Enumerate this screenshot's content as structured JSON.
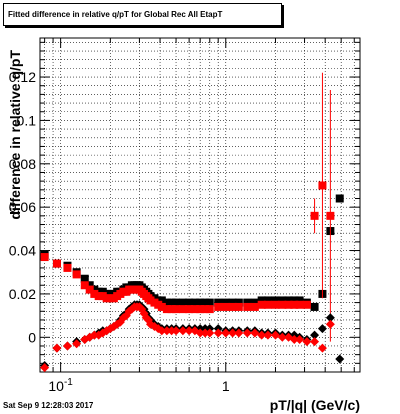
{
  "window": {
    "timestamp": "Sat Sep  9 12:28:03 2017"
  },
  "chart_data": {
    "type": "scatter",
    "title": "Fitted difference in relative q/pT for Global Rec All EtapT",
    "xlabel": "pT/|q| (GeV/c)",
    "ylabel": "difference in relative q/pT",
    "xscale": "log",
    "xlim": [
      0.075,
      6.5
    ],
    "ylim": [
      -0.016,
      0.138
    ],
    "x_tick_labels": [
      {
        "value": 0.1,
        "label": "10^-1"
      },
      {
        "value": 1,
        "label": "1"
      }
    ],
    "y_ticks": [
      0,
      0.02,
      0.04,
      0.06,
      0.08,
      0.1,
      0.12
    ],
    "y_tick_labels": [
      "0",
      "0.02",
      "0.04",
      "0.06",
      "0.08",
      "0.1",
      "0.12"
    ],
    "grid": true,
    "series_colors": {
      "black": "#000000",
      "red": "#ff0000"
    },
    "series": [
      {
        "marker": "square",
        "color": "#000000",
        "points": [
          {
            "x": 0.08,
            "y": 0.038
          },
          {
            "x": 0.095,
            "y": 0.034
          },
          {
            "x": 0.11,
            "y": 0.033
          },
          {
            "x": 0.125,
            "y": 0.03
          },
          {
            "x": 0.14,
            "y": 0.027
          },
          {
            "x": 0.15,
            "y": 0.024
          },
          {
            "x": 0.16,
            "y": 0.022
          },
          {
            "x": 0.17,
            "y": 0.021
          },
          {
            "x": 0.18,
            "y": 0.021
          },
          {
            "x": 0.19,
            "y": 0.02
          },
          {
            "x": 0.2,
            "y": 0.02
          },
          {
            "x": 0.21,
            "y": 0.02
          },
          {
            "x": 0.22,
            "y": 0.021
          },
          {
            "x": 0.23,
            "y": 0.021
          },
          {
            "x": 0.24,
            "y": 0.022
          },
          {
            "x": 0.25,
            "y": 0.023
          },
          {
            "x": 0.26,
            "y": 0.023
          },
          {
            "x": 0.27,
            "y": 0.024
          },
          {
            "x": 0.28,
            "y": 0.024
          },
          {
            "x": 0.29,
            "y": 0.024
          },
          {
            "x": 0.3,
            "y": 0.024
          },
          {
            "x": 0.31,
            "y": 0.023
          },
          {
            "x": 0.32,
            "y": 0.022
          },
          {
            "x": 0.33,
            "y": 0.021
          },
          {
            "x": 0.34,
            "y": 0.02
          },
          {
            "x": 0.35,
            "y": 0.019
          },
          {
            "x": 0.37,
            "y": 0.018
          },
          {
            "x": 0.39,
            "y": 0.017
          },
          {
            "x": 0.41,
            "y": 0.017
          },
          {
            "x": 0.44,
            "y": 0.016
          },
          {
            "x": 0.47,
            "y": 0.016
          },
          {
            "x": 0.5,
            "y": 0.016
          },
          {
            "x": 0.55,
            "y": 0.016
          },
          {
            "x": 0.6,
            "y": 0.016
          },
          {
            "x": 0.65,
            "y": 0.016
          },
          {
            "x": 0.7,
            "y": 0.016
          },
          {
            "x": 0.75,
            "y": 0.016
          },
          {
            "x": 0.8,
            "y": 0.016
          },
          {
            "x": 0.9,
            "y": 0.016
          },
          {
            "x": 1.0,
            "y": 0.016
          },
          {
            "x": 1.1,
            "y": 0.016
          },
          {
            "x": 1.2,
            "y": 0.016
          },
          {
            "x": 1.35,
            "y": 0.016
          },
          {
            "x": 1.5,
            "y": 0.016
          },
          {
            "x": 1.65,
            "y": 0.017
          },
          {
            "x": 1.8,
            "y": 0.017
          },
          {
            "x": 2.0,
            "y": 0.017
          },
          {
            "x": 2.2,
            "y": 0.017
          },
          {
            "x": 2.4,
            "y": 0.017
          },
          {
            "x": 2.6,
            "y": 0.017
          },
          {
            "x": 2.8,
            "y": 0.017
          },
          {
            "x": 3.1,
            "y": 0.016
          },
          {
            "x": 3.45,
            "y": 0.014
          },
          {
            "x": 3.85,
            "y": 0.02
          },
          {
            "x": 4.3,
            "y": 0.049
          },
          {
            "x": 4.9,
            "y": 0.064
          }
        ]
      },
      {
        "marker": "square",
        "color": "#ff0000",
        "points": [
          {
            "x": 0.08,
            "y": 0.037
          },
          {
            "x": 0.095,
            "y": 0.034
          },
          {
            "x": 0.11,
            "y": 0.032
          },
          {
            "x": 0.125,
            "y": 0.029
          },
          {
            "x": 0.14,
            "y": 0.024
          },
          {
            "x": 0.15,
            "y": 0.022
          },
          {
            "x": 0.16,
            "y": 0.02
          },
          {
            "x": 0.17,
            "y": 0.019
          },
          {
            "x": 0.18,
            "y": 0.019
          },
          {
            "x": 0.19,
            "y": 0.018
          },
          {
            "x": 0.2,
            "y": 0.018
          },
          {
            "x": 0.21,
            "y": 0.018
          },
          {
            "x": 0.22,
            "y": 0.019
          },
          {
            "x": 0.23,
            "y": 0.02
          },
          {
            "x": 0.24,
            "y": 0.021
          },
          {
            "x": 0.25,
            "y": 0.021
          },
          {
            "x": 0.26,
            "y": 0.022
          },
          {
            "x": 0.27,
            "y": 0.022
          },
          {
            "x": 0.28,
            "y": 0.022
          },
          {
            "x": 0.29,
            "y": 0.022
          },
          {
            "x": 0.3,
            "y": 0.022
          },
          {
            "x": 0.31,
            "y": 0.021
          },
          {
            "x": 0.32,
            "y": 0.02
          },
          {
            "x": 0.33,
            "y": 0.019
          },
          {
            "x": 0.34,
            "y": 0.018
          },
          {
            "x": 0.35,
            "y": 0.017
          },
          {
            "x": 0.37,
            "y": 0.016
          },
          {
            "x": 0.39,
            "y": 0.015
          },
          {
            "x": 0.41,
            "y": 0.014
          },
          {
            "x": 0.44,
            "y": 0.013
          },
          {
            "x": 0.47,
            "y": 0.013
          },
          {
            "x": 0.5,
            "y": 0.013
          },
          {
            "x": 0.55,
            "y": 0.013
          },
          {
            "x": 0.6,
            "y": 0.013
          },
          {
            "x": 0.65,
            "y": 0.013
          },
          {
            "x": 0.7,
            "y": 0.013
          },
          {
            "x": 0.75,
            "y": 0.013
          },
          {
            "x": 0.8,
            "y": 0.013
          },
          {
            "x": 0.9,
            "y": 0.014
          },
          {
            "x": 1.0,
            "y": 0.014
          },
          {
            "x": 1.1,
            "y": 0.014
          },
          {
            "x": 1.2,
            "y": 0.014
          },
          {
            "x": 1.35,
            "y": 0.014
          },
          {
            "x": 1.5,
            "y": 0.014
          },
          {
            "x": 1.65,
            "y": 0.015
          },
          {
            "x": 1.8,
            "y": 0.015
          },
          {
            "x": 2.0,
            "y": 0.015
          },
          {
            "x": 2.2,
            "y": 0.015
          },
          {
            "x": 2.4,
            "y": 0.015
          },
          {
            "x": 2.6,
            "y": 0.015
          },
          {
            "x": 2.8,
            "y": 0.015
          },
          {
            "x": 3.1,
            "y": 0.015
          },
          {
            "x": 3.45,
            "y": 0.056,
            "err": 0.008
          },
          {
            "x": 3.85,
            "y": 0.07,
            "err": 0.052
          },
          {
            "x": 4.3,
            "y": 0.056,
            "err": 0.058
          }
        ]
      },
      {
        "marker": "diamond",
        "color": "#000000",
        "points": [
          {
            "x": 0.08,
            "y": -0.013
          },
          {
            "x": 0.095,
            "y": -0.005
          },
          {
            "x": 0.11,
            "y": -0.004
          },
          {
            "x": 0.125,
            "y": -0.002
          },
          {
            "x": 0.14,
            "y": -0.001
          },
          {
            "x": 0.15,
            "y": 0.0
          },
          {
            "x": 0.16,
            "y": 0.001
          },
          {
            "x": 0.17,
            "y": 0.002
          },
          {
            "x": 0.18,
            "y": 0.003
          },
          {
            "x": 0.19,
            "y": 0.003
          },
          {
            "x": 0.2,
            "y": 0.004
          },
          {
            "x": 0.21,
            "y": 0.005
          },
          {
            "x": 0.22,
            "y": 0.006
          },
          {
            "x": 0.23,
            "y": 0.008
          },
          {
            "x": 0.24,
            "y": 0.01
          },
          {
            "x": 0.25,
            "y": 0.011
          },
          {
            "x": 0.26,
            "y": 0.013
          },
          {
            "x": 0.27,
            "y": 0.014
          },
          {
            "x": 0.28,
            "y": 0.015
          },
          {
            "x": 0.29,
            "y": 0.015
          },
          {
            "x": 0.3,
            "y": 0.015
          },
          {
            "x": 0.31,
            "y": 0.014
          },
          {
            "x": 0.32,
            "y": 0.013
          },
          {
            "x": 0.33,
            "y": 0.011
          },
          {
            "x": 0.34,
            "y": 0.009
          },
          {
            "x": 0.35,
            "y": 0.008
          },
          {
            "x": 0.37,
            "y": 0.006
          },
          {
            "x": 0.39,
            "y": 0.005
          },
          {
            "x": 0.41,
            "y": 0.004
          },
          {
            "x": 0.44,
            "y": 0.004
          },
          {
            "x": 0.47,
            "y": 0.004
          },
          {
            "x": 0.5,
            "y": 0.004
          },
          {
            "x": 0.55,
            "y": 0.004
          },
          {
            "x": 0.6,
            "y": 0.004
          },
          {
            "x": 0.65,
            "y": 0.004
          },
          {
            "x": 0.7,
            "y": 0.004
          },
          {
            "x": 0.75,
            "y": 0.004
          },
          {
            "x": 0.8,
            "y": 0.004
          },
          {
            "x": 0.9,
            "y": 0.004
          },
          {
            "x": 1.0,
            "y": 0.003
          },
          {
            "x": 1.1,
            "y": 0.003
          },
          {
            "x": 1.2,
            "y": 0.003
          },
          {
            "x": 1.35,
            "y": 0.003
          },
          {
            "x": 1.5,
            "y": 0.003
          },
          {
            "x": 1.65,
            "y": 0.002
          },
          {
            "x": 1.8,
            "y": 0.002
          },
          {
            "x": 2.0,
            "y": 0.002
          },
          {
            "x": 2.2,
            "y": 0.001
          },
          {
            "x": 2.4,
            "y": 0.001
          },
          {
            "x": 2.6,
            "y": 0.001
          },
          {
            "x": 2.8,
            "y": 0.0
          },
          {
            "x": 3.1,
            "y": -0.001
          },
          {
            "x": 3.45,
            "y": 0.001
          },
          {
            "x": 3.85,
            "y": 0.004
          },
          {
            "x": 4.3,
            "y": 0.009
          },
          {
            "x": 4.9,
            "y": -0.01
          }
        ]
      },
      {
        "marker": "diamond",
        "color": "#ff0000",
        "points": [
          {
            "x": 0.08,
            "y": -0.014
          },
          {
            "x": 0.095,
            "y": -0.005
          },
          {
            "x": 0.11,
            "y": -0.004
          },
          {
            "x": 0.125,
            "y": -0.003
          },
          {
            "x": 0.14,
            "y": -0.001
          },
          {
            "x": 0.15,
            "y": 0.0
          },
          {
            "x": 0.16,
            "y": 0.001
          },
          {
            "x": 0.17,
            "y": 0.001
          },
          {
            "x": 0.18,
            "y": 0.002
          },
          {
            "x": 0.19,
            "y": 0.003
          },
          {
            "x": 0.2,
            "y": 0.004
          },
          {
            "x": 0.21,
            "y": 0.005
          },
          {
            "x": 0.22,
            "y": 0.006
          },
          {
            "x": 0.23,
            "y": 0.007
          },
          {
            "x": 0.24,
            "y": 0.009
          },
          {
            "x": 0.25,
            "y": 0.01
          },
          {
            "x": 0.26,
            "y": 0.012
          },
          {
            "x": 0.27,
            "y": 0.013
          },
          {
            "x": 0.28,
            "y": 0.014
          },
          {
            "x": 0.29,
            "y": 0.014
          },
          {
            "x": 0.3,
            "y": 0.014
          },
          {
            "x": 0.31,
            "y": 0.013
          },
          {
            "x": 0.32,
            "y": 0.011
          },
          {
            "x": 0.33,
            "y": 0.009
          },
          {
            "x": 0.34,
            "y": 0.008
          },
          {
            "x": 0.35,
            "y": 0.006
          },
          {
            "x": 0.37,
            "y": 0.005
          },
          {
            "x": 0.39,
            "y": 0.004
          },
          {
            "x": 0.41,
            "y": 0.003
          },
          {
            "x": 0.44,
            "y": 0.003
          },
          {
            "x": 0.47,
            "y": 0.003
          },
          {
            "x": 0.5,
            "y": 0.003
          },
          {
            "x": 0.55,
            "y": 0.003
          },
          {
            "x": 0.6,
            "y": 0.003
          },
          {
            "x": 0.65,
            "y": 0.003
          },
          {
            "x": 0.7,
            "y": 0.002
          },
          {
            "x": 0.75,
            "y": 0.002
          },
          {
            "x": 0.8,
            "y": 0.002
          },
          {
            "x": 0.9,
            "y": 0.002
          },
          {
            "x": 1.0,
            "y": 0.002
          },
          {
            "x": 1.1,
            "y": 0.002
          },
          {
            "x": 1.2,
            "y": 0.002
          },
          {
            "x": 1.35,
            "y": 0.002
          },
          {
            "x": 1.5,
            "y": 0.002
          },
          {
            "x": 1.65,
            "y": 0.001
          },
          {
            "x": 1.8,
            "y": 0.001
          },
          {
            "x": 2.0,
            "y": 0.001
          },
          {
            "x": 2.2,
            "y": 0.0
          },
          {
            "x": 2.4,
            "y": 0.0
          },
          {
            "x": 2.6,
            "y": -0.001
          },
          {
            "x": 2.8,
            "y": -0.001
          },
          {
            "x": 3.1,
            "y": -0.002
          },
          {
            "x": 3.45,
            "y": -0.002
          },
          {
            "x": 3.85,
            "y": -0.005
          },
          {
            "x": 4.3,
            "y": 0.006
          }
        ]
      }
    ]
  }
}
